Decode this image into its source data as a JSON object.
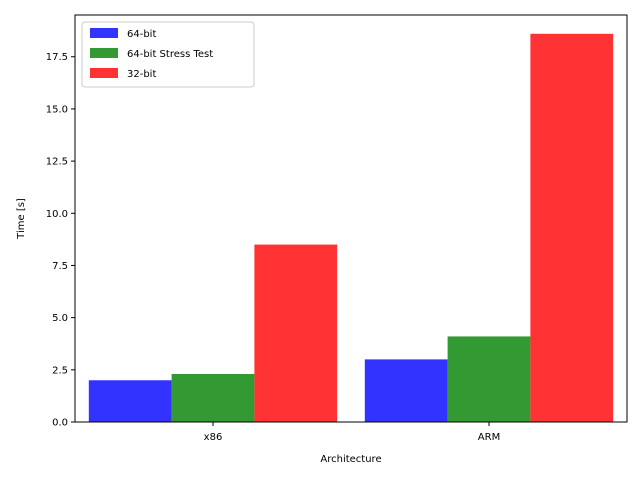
{
  "chart_data": {
    "type": "bar",
    "title": "",
    "xlabel": "Architecture",
    "ylabel": "Time [s]",
    "categories": [
      "x86",
      "ARM"
    ],
    "series": [
      {
        "name": "64-bit",
        "values": [
          2.0,
          3.0
        ],
        "color": "#3333ff"
      },
      {
        "name": "64-bit Stress Test",
        "values": [
          2.3,
          4.1
        ],
        "color": "#339933"
      },
      {
        "name": "32-bit",
        "values": [
          8.5,
          18.6
        ],
        "color": "#ff3333"
      }
    ],
    "ylim": [
      0,
      19.5
    ],
    "yticks": [
      0.0,
      2.5,
      5.0,
      7.5,
      10.0,
      12.5,
      15.0,
      17.5
    ],
    "ytick_labels": [
      "0.0",
      "2.5",
      "5.0",
      "7.5",
      "10.0",
      "12.5",
      "15.0",
      "17.5"
    ],
    "legend_placement": "top-left",
    "grid": false
  }
}
